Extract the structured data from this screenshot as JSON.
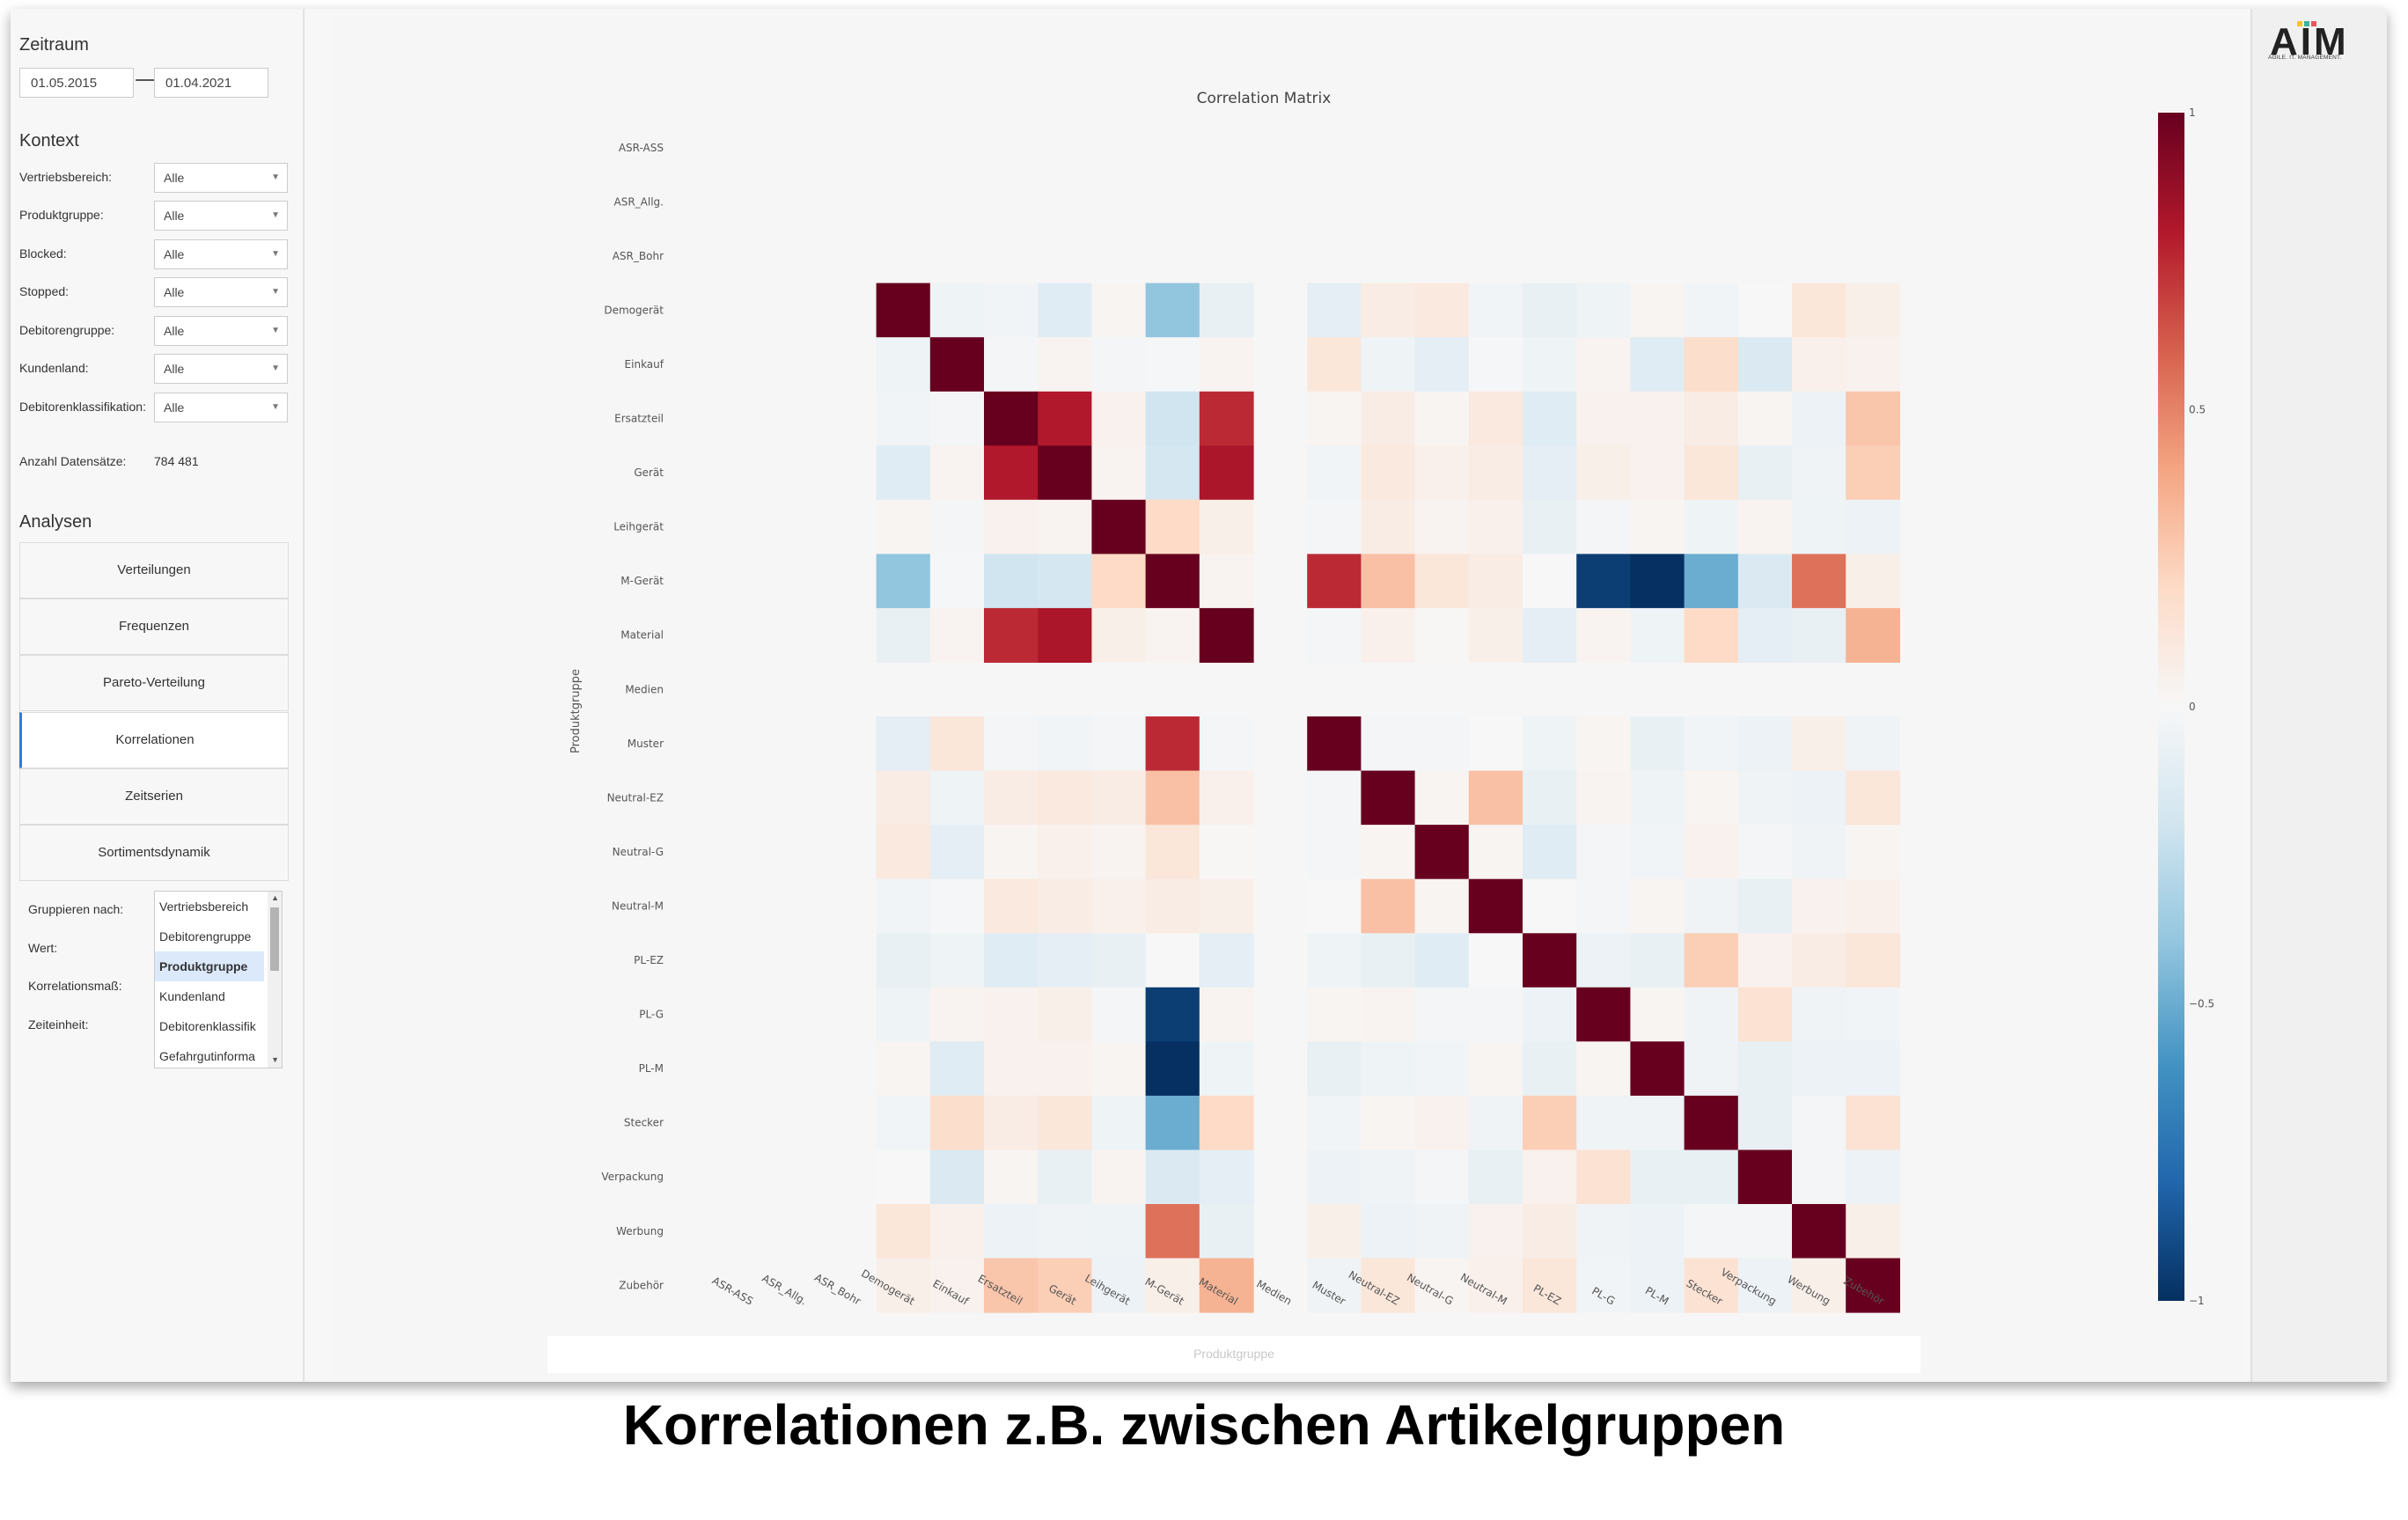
{
  "sidebar": {
    "zeitraum": {
      "title": "Zeitraum",
      "from": "01.05.2015",
      "to": "01.04.2021"
    },
    "kontext": {
      "title": "Kontext",
      "filters": [
        {
          "label": "Vertriebsbereich:",
          "value": "Alle"
        },
        {
          "label": "Produktgruppe:",
          "value": "Alle"
        },
        {
          "label": "Blocked:",
          "value": "Alle"
        },
        {
          "label": "Stopped:",
          "value": "Alle"
        },
        {
          "label": "Debitorengruppe:",
          "value": "Alle"
        },
        {
          "label": "Kundenland:",
          "value": "Alle"
        },
        {
          "label": "Debitorenklassifikation:",
          "value": "Alle"
        }
      ],
      "count_label": "Anzahl Datensätze:",
      "count_value": "784 481"
    },
    "analysen": {
      "title": "Analysen",
      "items": [
        "Verteilungen",
        "Frequenzen",
        "Pareto-Verteilung",
        "Korrelationen",
        "Zeitserien",
        "Sortimentsdynamik"
      ],
      "active_index": 3
    },
    "grouping": {
      "labels": [
        "Gruppieren nach:",
        "Wert:",
        "Korrelationsmaß:",
        "Zeiteinheit:"
      ],
      "options": [
        "Vertriebsbereich",
        "Debitorengruppe",
        "Produktgruppe",
        "Kundenland",
        "Debitorenklassifik",
        "Gefahrgutinforma"
      ],
      "selected_index": 2
    }
  },
  "logo": {
    "text": "AIM",
    "subtitle": "AGILE. IT. MANAGEMENT."
  },
  "caption": "Korrelationen z.B. zwischen Artikelgruppen",
  "colors": {
    "accent": "#2a7de1",
    "neg": "#053061",
    "pos": "#67001f"
  },
  "chart_data": {
    "type": "heatmap",
    "title": "Correlation Matrix",
    "xlabel": "Produktgruppe",
    "ylabel": "Produktgruppe",
    "categories": [
      "ASR-ASS",
      "ASR_Allg.",
      "ASR_Bohr",
      "Demogerät",
      "Einkauf",
      "Ersatzteil",
      "Gerät",
      "Leihgerät",
      "M-Gerät",
      "Material",
      "Medien",
      "Muster",
      "Neutral-EZ",
      "Neutral-G",
      "Neutral-M",
      "PL-EZ",
      "PL-G",
      "PL-M",
      "Stecker",
      "Verpackung",
      "Werbung",
      "Zubehör"
    ],
    "colorscale": "RdBu",
    "zrange": [
      -1,
      1
    ],
    "colorbar_ticks": [
      {
        "value": 1,
        "label": "1"
      },
      {
        "value": 0.5,
        "label": "0.5"
      },
      {
        "value": 0,
        "label": "0"
      },
      {
        "value": -0.5,
        "label": "−0.5"
      },
      {
        "value": -1,
        "label": "−1"
      }
    ],
    "matrix": [
      [
        null,
        null,
        null,
        null,
        null,
        null,
        null,
        null,
        null,
        null,
        null,
        null,
        null,
        null,
        null,
        null,
        null,
        null,
        null,
        null,
        null,
        null
      ],
      [
        null,
        null,
        null,
        null,
        null,
        null,
        null,
        null,
        null,
        null,
        null,
        null,
        null,
        null,
        null,
        null,
        null,
        null,
        null,
        null,
        null,
        null
      ],
      [
        null,
        null,
        null,
        null,
        null,
        null,
        null,
        null,
        null,
        null,
        null,
        null,
        null,
        null,
        null,
        null,
        null,
        null,
        null,
        null,
        null,
        null
      ],
      [
        null,
        null,
        null,
        1,
        -0.05,
        -0.03,
        -0.12,
        0.02,
        -0.4,
        -0.08,
        null,
        -0.1,
        0.08,
        0.1,
        -0.03,
        -0.08,
        -0.05,
        0.02,
        -0.03,
        0,
        0.12,
        0.06
      ],
      [
        null,
        null,
        null,
        -0.05,
        1,
        -0.02,
        0.03,
        -0.02,
        -0.01,
        0.03,
        null,
        0.12,
        -0.05,
        -0.1,
        -0.01,
        -0.05,
        0.03,
        -0.12,
        0.18,
        -0.15,
        0.05,
        0.04
      ],
      [
        null,
        null,
        null,
        -0.03,
        -0.02,
        1,
        0.8,
        0.04,
        -0.2,
        0.75,
        null,
        0.02,
        0.08,
        0.02,
        0.1,
        -0.12,
        0.04,
        0.04,
        0.08,
        0.02,
        -0.06,
        0.28
      ],
      [
        null,
        null,
        null,
        -0.12,
        0.03,
        0.8,
        1,
        0.03,
        -0.18,
        0.82,
        null,
        -0.03,
        0.1,
        0.05,
        0.08,
        -0.1,
        0.06,
        0.04,
        0.12,
        -0.08,
        -0.04,
        0.25
      ],
      [
        null,
        null,
        null,
        0.02,
        -0.02,
        0.04,
        0.03,
        1,
        0.2,
        0.06,
        null,
        -0.02,
        0.08,
        0.03,
        0.05,
        -0.08,
        -0.02,
        0.02,
        -0.05,
        0.03,
        -0.05,
        -0.06
      ],
      [
        null,
        null,
        null,
        -0.4,
        -0.01,
        -0.2,
        -0.18,
        0.2,
        1,
        0.03,
        null,
        0.75,
        0.3,
        0.12,
        0.08,
        0,
        -0.95,
        -1,
        -0.5,
        -0.15,
        0.55,
        0.06
      ],
      [
        null,
        null,
        null,
        -0.08,
        0.03,
        0.75,
        0.82,
        0.06,
        0.03,
        1,
        null,
        -0.02,
        0.05,
        0.01,
        0.06,
        -0.1,
        0.03,
        -0.05,
        0.2,
        -0.1,
        -0.08,
        0.35
      ],
      [
        null,
        null,
        null,
        null,
        null,
        null,
        null,
        null,
        null,
        null,
        null,
        null,
        null,
        null,
        null,
        null,
        null,
        null,
        null,
        null,
        null,
        null
      ],
      [
        null,
        null,
        null,
        -0.1,
        0.12,
        -0.02,
        -0.03,
        -0.02,
        0.75,
        -0.02,
        null,
        1,
        -0.02,
        -0.02,
        0,
        -0.05,
        0.02,
        -0.08,
        -0.03,
        -0.06,
        0.06,
        -0.04
      ],
      [
        null,
        null,
        null,
        0.08,
        -0.05,
        0.08,
        0.1,
        0.08,
        0.3,
        0.05,
        null,
        -0.02,
        1,
        0.02,
        0.3,
        -0.08,
        0.03,
        -0.05,
        0.02,
        -0.04,
        -0.06,
        0.12
      ],
      [
        null,
        null,
        null,
        0.1,
        -0.1,
        0.02,
        0.05,
        0.03,
        0.12,
        0.01,
        null,
        -0.02,
        0.02,
        1,
        0.02,
        -0.12,
        -0.02,
        -0.03,
        0.04,
        -0.02,
        -0.04,
        0.02
      ],
      [
        null,
        null,
        null,
        -0.03,
        -0.01,
        0.1,
        0.08,
        0.05,
        0.08,
        0.06,
        null,
        0,
        0.3,
        0.02,
        1,
        0,
        -0.02,
        0.02,
        -0.04,
        -0.08,
        0.04,
        0.05
      ],
      [
        null,
        null,
        null,
        -0.08,
        -0.05,
        -0.12,
        -0.1,
        -0.08,
        0,
        -0.1,
        null,
        -0.05,
        -0.08,
        -0.12,
        0,
        1,
        -0.06,
        -0.08,
        0.25,
        0.04,
        0.08,
        0.12
      ],
      [
        null,
        null,
        null,
        -0.05,
        0.03,
        0.04,
        0.06,
        -0.02,
        -0.95,
        0.03,
        null,
        0.02,
        0.03,
        -0.02,
        -0.02,
        -0.06,
        1,
        0.02,
        -0.04,
        0.15,
        -0.04,
        -0.03
      ],
      [
        null,
        null,
        null,
        0.02,
        -0.12,
        0.04,
        0.04,
        0.02,
        -1,
        -0.05,
        null,
        -0.08,
        -0.05,
        -0.03,
        0.02,
        -0.08,
        0.02,
        1,
        -0.04,
        -0.08,
        -0.06,
        -0.06
      ],
      [
        null,
        null,
        null,
        -0.03,
        0.18,
        0.08,
        0.12,
        -0.05,
        -0.5,
        0.2,
        null,
        -0.03,
        0.02,
        0.04,
        -0.04,
        0.25,
        -0.04,
        -0.04,
        1,
        -0.08,
        -0.02,
        0.15
      ],
      [
        null,
        null,
        null,
        0,
        -0.15,
        0.02,
        -0.08,
        0.03,
        -0.15,
        -0.1,
        null,
        -0.06,
        -0.04,
        -0.02,
        -0.08,
        0.04,
        0.15,
        -0.08,
        -0.08,
        1,
        -0.02,
        -0.06
      ],
      [
        null,
        null,
        null,
        0.12,
        0.05,
        -0.06,
        -0.04,
        -0.05,
        0.55,
        -0.08,
        null,
        0.06,
        -0.06,
        -0.04,
        0.04,
        0.08,
        -0.04,
        -0.06,
        -0.02,
        -0.02,
        1,
        0.06
      ],
      [
        null,
        null,
        null,
        0.06,
        0.04,
        0.28,
        0.25,
        -0.06,
        0.06,
        0.35,
        null,
        -0.04,
        0.12,
        0.02,
        0.05,
        0.12,
        -0.03,
        -0.06,
        0.15,
        -0.06,
        0.06,
        1
      ]
    ]
  }
}
